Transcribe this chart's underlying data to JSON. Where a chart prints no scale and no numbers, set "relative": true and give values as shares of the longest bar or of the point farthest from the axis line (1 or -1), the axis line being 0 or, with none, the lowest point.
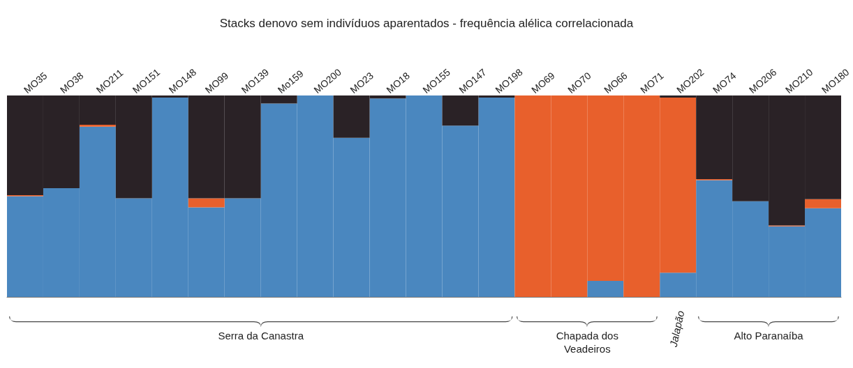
{
  "chart_data": {
    "type": "bar",
    "title": "Stacks denovo sem indivíduos aparentados - frequência alélica correlacionada",
    "relative": true,
    "stacked": true,
    "categories": [
      "MO35",
      "MO38",
      "MO211",
      "MO151",
      "MO148",
      "MO99",
      "MO139",
      "Mo159",
      "MO200",
      "MO23",
      "MO18",
      "MO155",
      "MO147",
      "MO198",
      "MO69",
      "MO70",
      "MO66",
      "MO71",
      "MO202",
      "MO74",
      "MO206",
      "MO210",
      "MO180"
    ],
    "series": [
      {
        "color": "#4a87bf",
        "values": [
          0.5,
          0.54,
          0.845,
          0.49,
          0.99,
          0.445,
          0.49,
          0.96,
          1.0,
          0.79,
          0.985,
          1.0,
          0.85,
          0.99,
          0,
          0,
          0.08,
          0,
          0.12,
          0.58,
          0.475,
          0.35,
          0.44
        ]
      },
      {
        "color": "#e8602c",
        "values": [
          0.005,
          0,
          0.01,
          0,
          0,
          0.045,
          0,
          0,
          0,
          0,
          0,
          0,
          0,
          0,
          1.0,
          1.0,
          0.92,
          1.0,
          0.87,
          0.005,
          0,
          0.005,
          0.045
        ]
      },
      {
        "color": "#2a2226",
        "values": [
          0.495,
          0.46,
          0.145,
          0.51,
          0.01,
          0.51,
          0.51,
          0.04,
          0,
          0.21,
          0.015,
          0,
          0.15,
          0.01,
          0,
          0,
          0,
          0,
          0.01,
          0.415,
          0.525,
          0.645,
          0.515
        ]
      }
    ],
    "annotations": [
      "Serra da Canastra",
      "Chapada dos Veadeiros",
      "Jalapão",
      "Alto Paranaíba"
    ]
  }
}
